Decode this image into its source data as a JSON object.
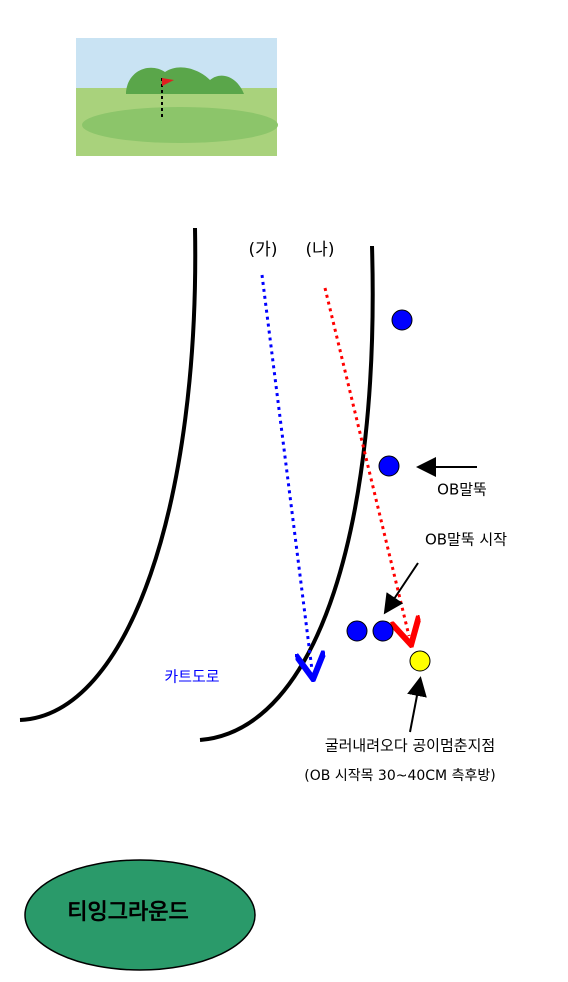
{
  "labels": {
    "ga": "(가)",
    "na": "(나)",
    "ob_stake": "OB말뚝",
    "ob_stake_start": "OB말뚝 시작",
    "cart_road": "카트도로",
    "stop_point": "굴러내려오다 공이멈춘지점",
    "stop_point_note": "(OB 시작목 30~40CM 측후방)",
    "teeing_ground": "티잉그라운드"
  }
}
